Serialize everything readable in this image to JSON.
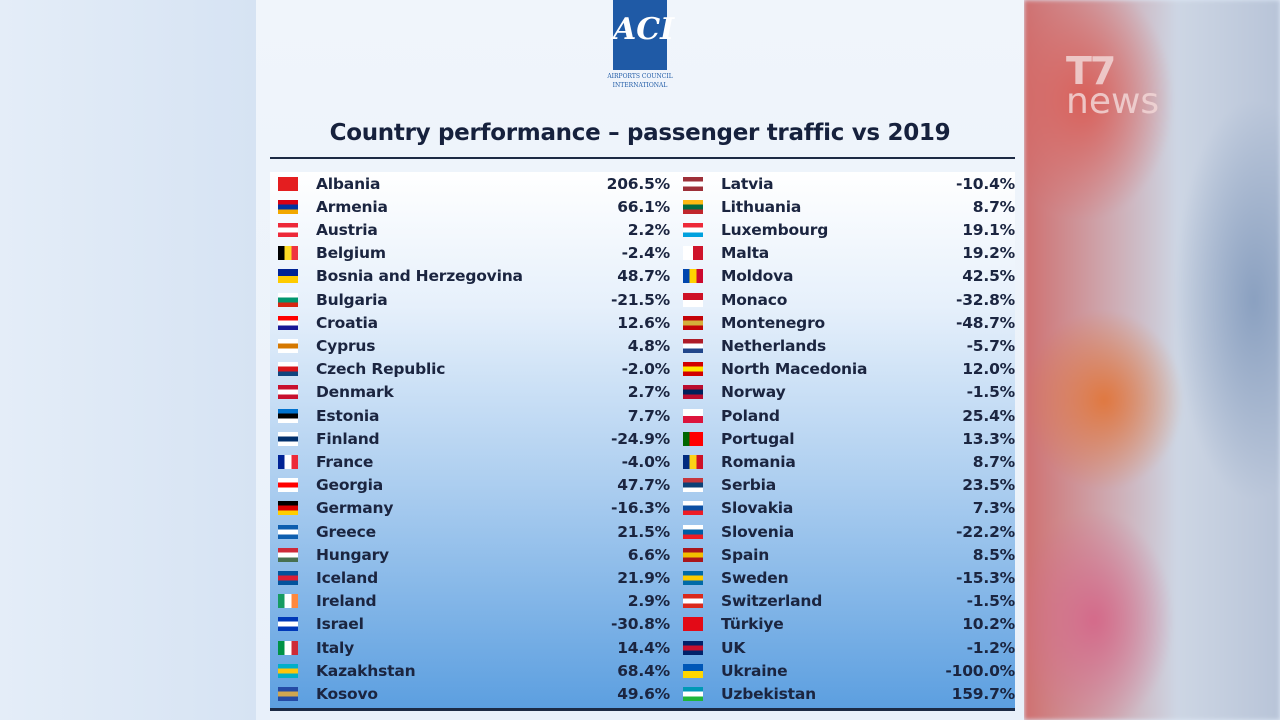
{
  "logo": {
    "text": "ACI",
    "caption": "AIRPORTS COUNCIL INTERNATIONAL"
  },
  "broadcaster_logo": {
    "numeral": "T7",
    "text": "news"
  },
  "title": "Country performance – passenger traffic vs 2019",
  "columns": [
    [
      {
        "country": "Albania",
        "value": "206.5%",
        "flag": [
          "#e41e20",
          "#e41e20"
        ]
      },
      {
        "country": "Armenia",
        "value": "66.1%",
        "flag": [
          "#d90012",
          "#0033a0",
          "#f2a800"
        ]
      },
      {
        "country": "Austria",
        "value": "2.2%",
        "flag": [
          "#ed2939",
          "#ffffff",
          "#ed2939"
        ]
      },
      {
        "country": "Belgium",
        "value": "-2.4%",
        "flag": [
          "#000000",
          "#fdda24",
          "#ef3340"
        ],
        "vertical": true
      },
      {
        "country": "Bosnia and Herzegovina",
        "value": "48.7%",
        "flag": [
          "#002395",
          "#fecb00"
        ]
      },
      {
        "country": "Bulgaria",
        "value": "-21.5%",
        "flag": [
          "#ffffff",
          "#00966e",
          "#d62612"
        ]
      },
      {
        "country": "Croatia",
        "value": "12.6%",
        "flag": [
          "#ff0000",
          "#ffffff",
          "#171796"
        ]
      },
      {
        "country": "Cyprus",
        "value": "4.8%",
        "flag": [
          "#ffffff",
          "#d57800",
          "#ffffff"
        ]
      },
      {
        "country": "Czech Republic",
        "value": "-2.0%",
        "flag": [
          "#ffffff",
          "#d7141a",
          "#11457e"
        ]
      },
      {
        "country": "Denmark",
        "value": "2.7%",
        "flag": [
          "#c8102e",
          "#ffffff",
          "#c8102e"
        ]
      },
      {
        "country": "Estonia",
        "value": "7.7%",
        "flag": [
          "#0072ce",
          "#000000",
          "#ffffff"
        ]
      },
      {
        "country": "Finland",
        "value": "-24.9%",
        "flag": [
          "#ffffff",
          "#002f6c",
          "#ffffff"
        ]
      },
      {
        "country": "France",
        "value": "-4.0%",
        "flag": [
          "#002395",
          "#ffffff",
          "#ed2939"
        ],
        "vertical": true
      },
      {
        "country": "Georgia",
        "value": "47.7%",
        "flag": [
          "#ffffff",
          "#ff0000",
          "#ffffff"
        ]
      },
      {
        "country": "Germany",
        "value": "-16.3%",
        "flag": [
          "#000000",
          "#dd0000",
          "#ffce00"
        ]
      },
      {
        "country": "Greece",
        "value": "21.5%",
        "flag": [
          "#0d5eaf",
          "#ffffff",
          "#0d5eaf"
        ]
      },
      {
        "country": "Hungary",
        "value": "6.6%",
        "flag": [
          "#ce2939",
          "#ffffff",
          "#477050"
        ]
      },
      {
        "country": "Iceland",
        "value": "21.9%",
        "flag": [
          "#02529c",
          "#dc1e35",
          "#02529c"
        ]
      },
      {
        "country": "Ireland",
        "value": "2.9%",
        "flag": [
          "#169b62",
          "#ffffff",
          "#ff883e"
        ],
        "vertical": true
      },
      {
        "country": "Israel",
        "value": "-30.8%",
        "flag": [
          "#0038b8",
          "#ffffff",
          "#0038b8"
        ]
      },
      {
        "country": "Italy",
        "value": "14.4%",
        "flag": [
          "#009246",
          "#ffffff",
          "#ce2b37"
        ],
        "vertical": true
      },
      {
        "country": "Kazakhstan",
        "value": "68.4%",
        "flag": [
          "#00afca",
          "#fec50c",
          "#00afca"
        ]
      },
      {
        "country": "Kosovo",
        "value": "49.6%",
        "flag": [
          "#244aa5",
          "#d0a650",
          "#244aa5"
        ]
      }
    ],
    [
      {
        "country": "Latvia",
        "value": "-10.4%",
        "flag": [
          "#9e3039",
          "#ffffff",
          "#9e3039"
        ]
      },
      {
        "country": "Lithuania",
        "value": "8.7%",
        "flag": [
          "#fdb913",
          "#006a44",
          "#c1272d"
        ]
      },
      {
        "country": "Luxembourg",
        "value": "19.1%",
        "flag": [
          "#ed2939",
          "#ffffff",
          "#00a1de"
        ]
      },
      {
        "country": "Malta",
        "value": "19.2%",
        "flag": [
          "#ffffff",
          "#cf142b"
        ],
        "vertical": true
      },
      {
        "country": "Moldova",
        "value": "42.5%",
        "flag": [
          "#0046ae",
          "#ffd200",
          "#cc092f"
        ],
        "vertical": true
      },
      {
        "country": "Monaco",
        "value": "-32.8%",
        "flag": [
          "#ce1126",
          "#ffffff"
        ]
      },
      {
        "country": "Montenegro",
        "value": "-48.7%",
        "flag": [
          "#c40308",
          "#d4af3a",
          "#c40308"
        ]
      },
      {
        "country": "Netherlands",
        "value": "-5.7%",
        "flag": [
          "#ae1c28",
          "#ffffff",
          "#21468b"
        ]
      },
      {
        "country": "North Macedonia",
        "value": "12.0%",
        "flag": [
          "#d20000",
          "#ffe600",
          "#d20000"
        ]
      },
      {
        "country": "Norway",
        "value": "-1.5%",
        "flag": [
          "#ba0c2f",
          "#00205b",
          "#ba0c2f"
        ]
      },
      {
        "country": "Poland",
        "value": "25.4%",
        "flag": [
          "#ffffff",
          "#dc143c"
        ]
      },
      {
        "country": "Portugal",
        "value": "13.3%",
        "flag": [
          "#006600",
          "#ff0000",
          "#ff0000"
        ],
        "vertical": true
      },
      {
        "country": "Romania",
        "value": "8.7%",
        "flag": [
          "#002b7f",
          "#fcd116",
          "#ce1126"
        ],
        "vertical": true
      },
      {
        "country": "Serbia",
        "value": "23.5%",
        "flag": [
          "#c6363c",
          "#0c4076",
          "#ffffff"
        ]
      },
      {
        "country": "Slovakia",
        "value": "7.3%",
        "flag": [
          "#ffffff",
          "#0b4ea2",
          "#ee1c25"
        ]
      },
      {
        "country": "Slovenia",
        "value": "-22.2%",
        "flag": [
          "#ffffff",
          "#005da4",
          "#ed1c24"
        ]
      },
      {
        "country": "Spain",
        "value": "8.5%",
        "flag": [
          "#aa151b",
          "#f1bf00",
          "#aa151b"
        ]
      },
      {
        "country": "Sweden",
        "value": "-15.3%",
        "flag": [
          "#006aa7",
          "#fecc00",
          "#006aa7"
        ]
      },
      {
        "country": "Switzerland",
        "value": "-1.5%",
        "flag": [
          "#da291c",
          "#ffffff",
          "#da291c"
        ]
      },
      {
        "country": "Türkiye",
        "value": "10.2%",
        "flag": [
          "#e30a17",
          "#e30a17"
        ]
      },
      {
        "country": "UK",
        "value": "-1.2%",
        "flag": [
          "#012169",
          "#c8102e",
          "#012169"
        ]
      },
      {
        "country": "Ukraine",
        "value": "-100.0%",
        "flag": [
          "#0057b7",
          "#ffd700"
        ]
      },
      {
        "country": "Uzbekistan",
        "value": "159.7%",
        "flag": [
          "#0099b5",
          "#ffffff",
          "#1eb53a"
        ]
      }
    ]
  ]
}
